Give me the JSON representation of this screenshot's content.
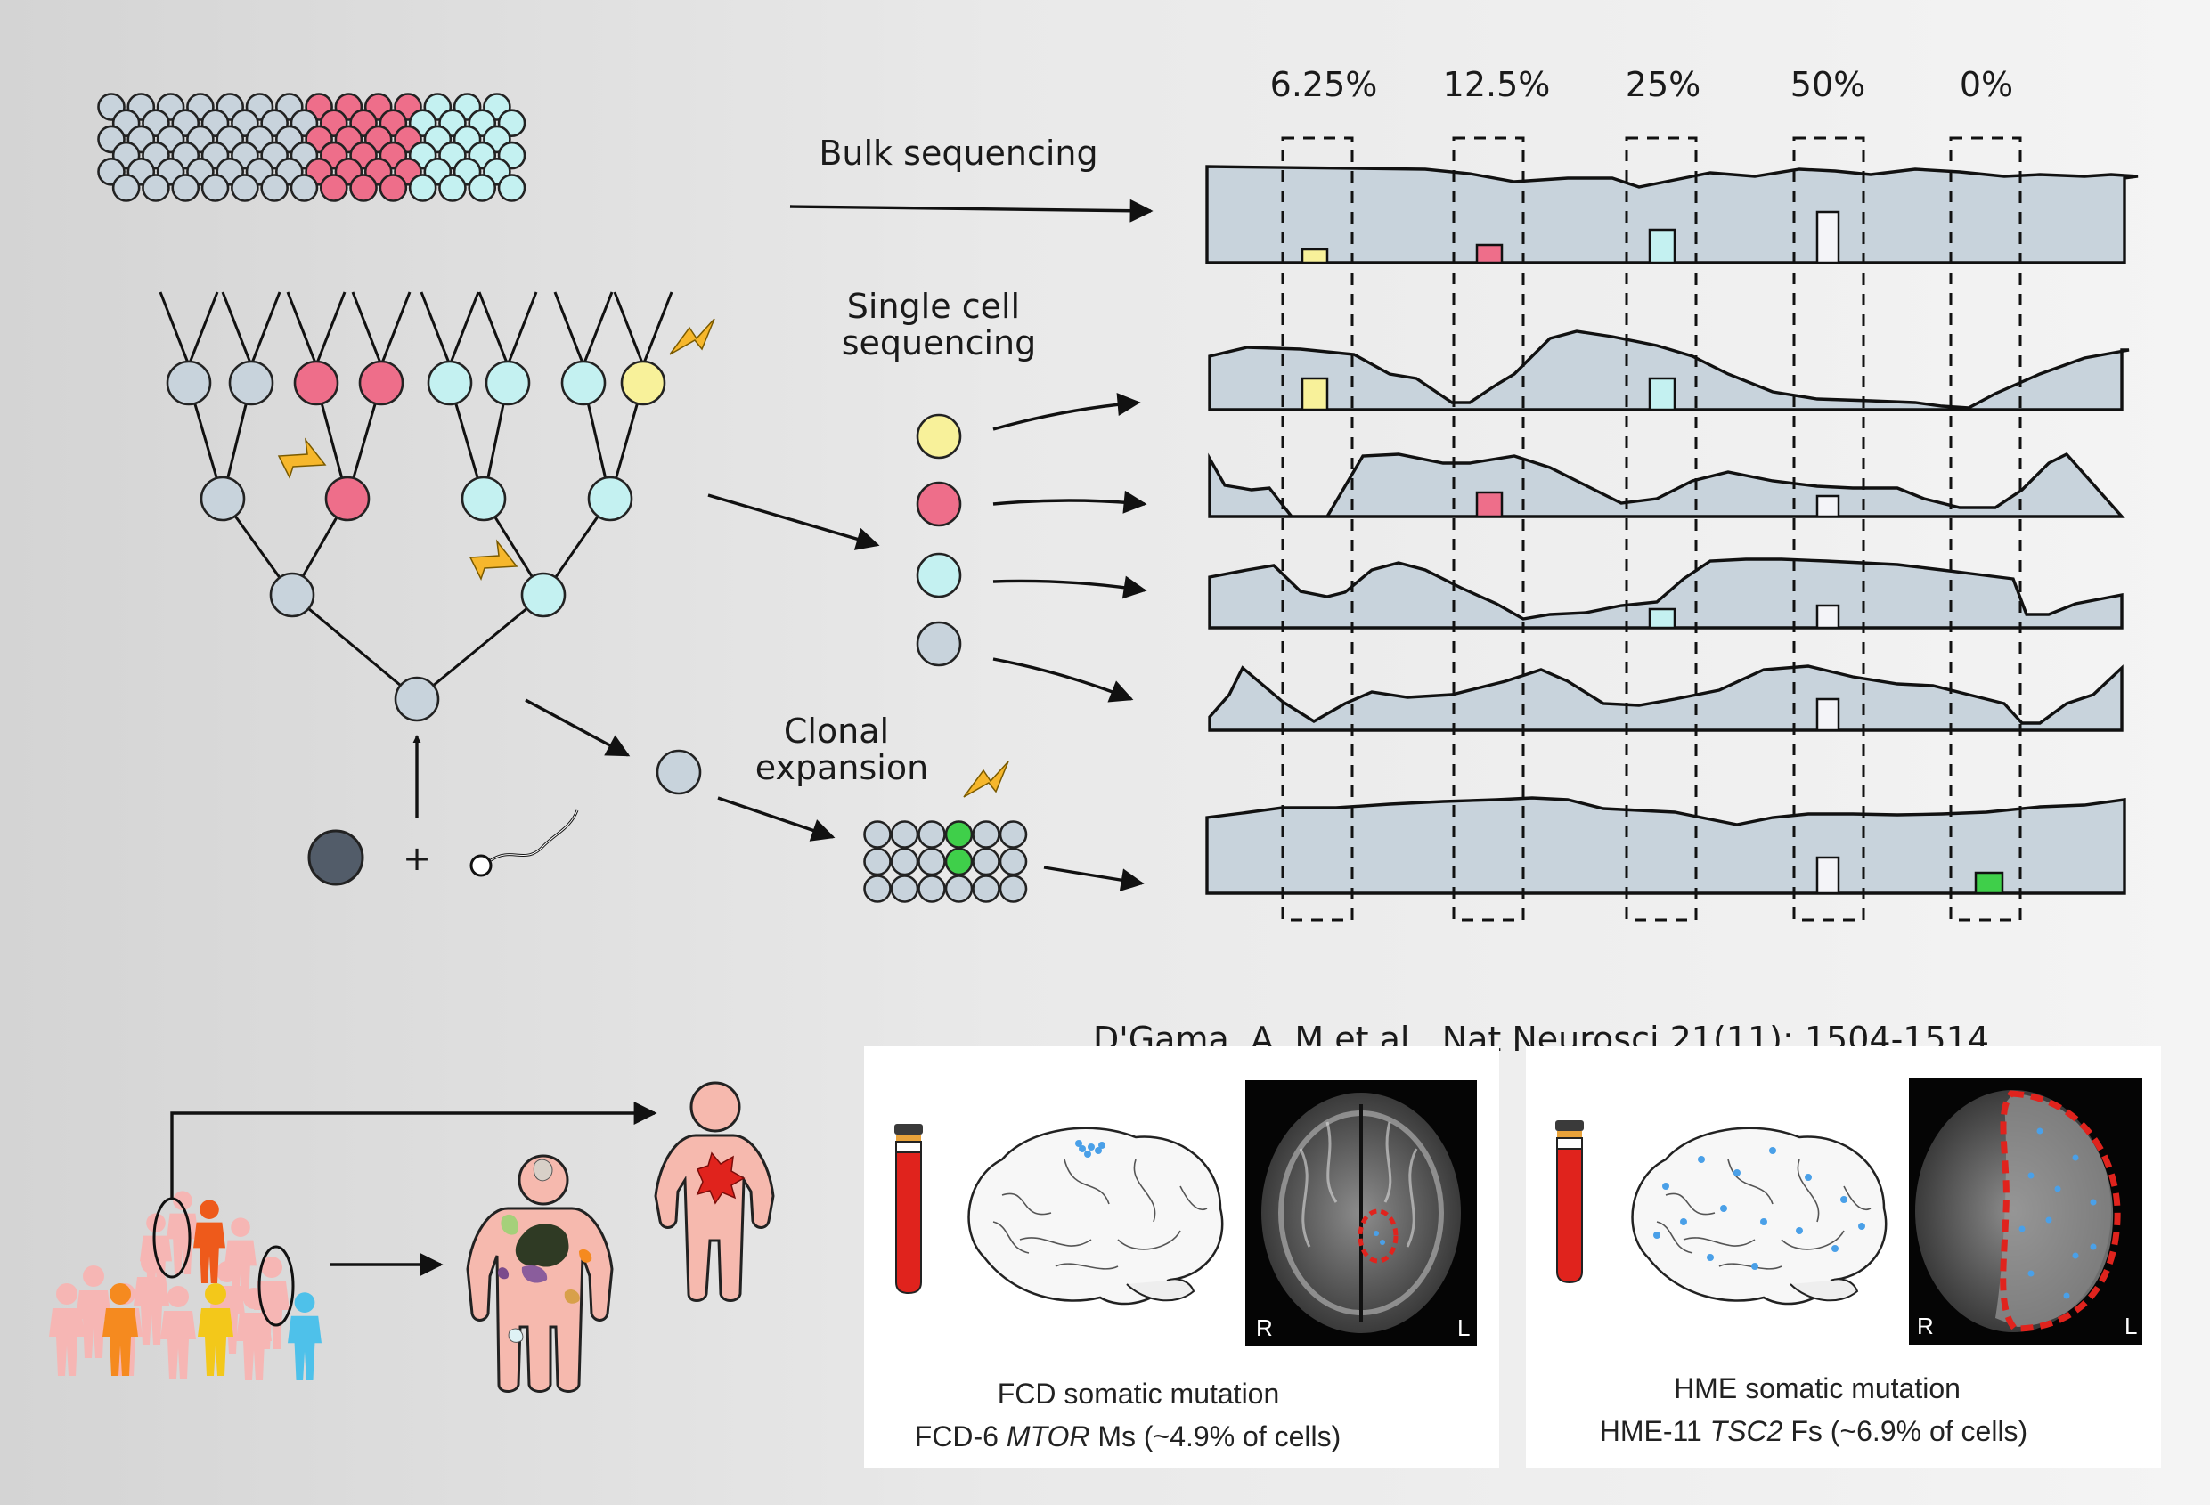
{
  "labels": {
    "bulk": "Bulk sequencing",
    "single_line1": "Single cell",
    "single_line2": "sequencing",
    "clonal_line1": "Clonal",
    "clonal_line2": "expansion",
    "plus": "+",
    "citation": "D'Gama, A. M et al., Nat Neurosci 21(11): 1504-1514"
  },
  "percentages": [
    "6.25%",
    "12.5%",
    "25%",
    "50%",
    "0%"
  ],
  "colors": {
    "grey_cell": "#c8d3dc",
    "pink_cell": "#ee6e8a",
    "cyan_cell": "#c4f1f1",
    "yellow_cell": "#f8f19a",
    "green_cell": "#3fcf4a",
    "egg": "#525c69",
    "track": "#c8d3dc",
    "bolt": "#f6b72c",
    "person_pink": "#f6b9ae",
    "blood": "#e0231d",
    "mri_outline": "#e0231d"
  },
  "panels": [
    {
      "caption1": "FCD somatic mutation",
      "caption2_prefix": "FCD-6 ",
      "caption2_gene": "MTOR",
      "caption2_suffix": " Ms (~4.9% of cells)",
      "mri_left": "R",
      "mri_right": "L"
    },
    {
      "caption1": "HME somatic mutation",
      "caption2_prefix": "HME-11 ",
      "caption2_gene": "TSC2",
      "caption2_suffix": " Fs (~6.9% of cells)",
      "mri_left": "R",
      "mri_right": "L"
    }
  ]
}
